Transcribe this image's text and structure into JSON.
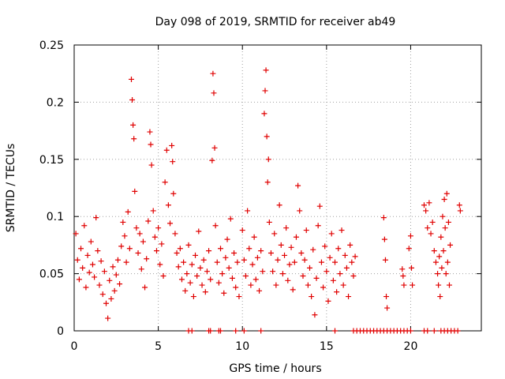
{
  "chart_data": {
    "type": "scatter",
    "title": "Day 098 of 2019, SRMTID for receiver ab49",
    "xlabel": "GPS time / hours",
    "ylabel": "SRMTID / TECUs",
    "xlim": [
      0,
      24.2
    ],
    "ylim": [
      0,
      0.25
    ],
    "x_ticks": [
      0,
      5,
      10,
      15,
      20
    ],
    "x_tick_labels": [
      "0",
      "5",
      "10",
      "15",
      "20"
    ],
    "y_ticks": [
      0,
      0.05,
      0.1,
      0.15,
      0.2,
      0.25
    ],
    "y_tick_labels": [
      "0",
      "0.05",
      "0.1",
      "0.15",
      "0.2",
      "0.25"
    ],
    "grid": true,
    "marker": "+",
    "series": [
      {
        "name": "SRMTID",
        "color": "#e00000",
        "points": [
          [
            0.1,
            0.085
          ],
          [
            0.2,
            0.062
          ],
          [
            0.3,
            0.045
          ],
          [
            0.4,
            0.072
          ],
          [
            0.5,
            0.055
          ],
          [
            0.6,
            0.092
          ],
          [
            0.7,
            0.038
          ],
          [
            0.8,
            0.066
          ],
          [
            0.9,
            0.051
          ],
          [
            1.0,
            0.078
          ],
          [
            1.1,
            0.058
          ],
          [
            1.2,
            0.047
          ],
          [
            1.3,
            0.099
          ],
          [
            1.4,
            0.07
          ],
          [
            1.5,
            0.04
          ],
          [
            1.6,
            0.061
          ],
          [
            1.7,
            0.032
          ],
          [
            1.8,
            0.052
          ],
          [
            1.9,
            0.024
          ],
          [
            2.0,
            0.011
          ],
          [
            2.1,
            0.044
          ],
          [
            2.2,
            0.028
          ],
          [
            2.3,
            0.056
          ],
          [
            2.4,
            0.035
          ],
          [
            2.5,
            0.049
          ],
          [
            2.6,
            0.062
          ],
          [
            2.7,
            0.041
          ],
          [
            2.8,
            0.074
          ],
          [
            2.9,
            0.095
          ],
          [
            3.0,
            0.083
          ],
          [
            3.1,
            0.06
          ],
          [
            3.2,
            0.104
          ],
          [
            3.3,
            0.072
          ],
          [
            3.4,
            0.22
          ],
          [
            3.45,
            0.202
          ],
          [
            3.5,
            0.18
          ],
          [
            3.55,
            0.168
          ],
          [
            3.6,
            0.122
          ],
          [
            3.7,
            0.09
          ],
          [
            3.8,
            0.068
          ],
          [
            3.9,
            0.085
          ],
          [
            4.0,
            0.054
          ],
          [
            4.1,
            0.078
          ],
          [
            4.2,
            0.038
          ],
          [
            4.3,
            0.063
          ],
          [
            4.4,
            0.096
          ],
          [
            4.5,
            0.174
          ],
          [
            4.55,
            0.163
          ],
          [
            4.6,
            0.145
          ],
          [
            4.7,
            0.105
          ],
          [
            4.8,
            0.082
          ],
          [
            4.9,
            0.07
          ],
          [
            5.0,
            0.09
          ],
          [
            5.1,
            0.058
          ],
          [
            5.2,
            0.076
          ],
          [
            5.3,
            0.048
          ],
          [
            5.4,
            0.13
          ],
          [
            5.5,
            0.158
          ],
          [
            5.6,
            0.11
          ],
          [
            5.7,
            0.094
          ],
          [
            5.8,
            0.162
          ],
          [
            5.85,
            0.148
          ],
          [
            5.9,
            0.12
          ],
          [
            6.0,
            0.085
          ],
          [
            6.1,
            0.068
          ],
          [
            6.2,
            0.056
          ],
          [
            6.3,
            0.072
          ],
          [
            6.4,
            0.045
          ],
          [
            6.5,
            0.06
          ],
          [
            6.6,
            0.035
          ],
          [
            6.7,
            0.05
          ],
          [
            6.8,
            0.075
          ],
          [
            6.9,
            0.042
          ],
          [
            7.0,
            0.058
          ],
          [
            7.1,
            0.03
          ],
          [
            7.2,
            0.066
          ],
          [
            7.3,
            0.048
          ],
          [
            7.4,
            0.087
          ],
          [
            7.5,
            0.055
          ],
          [
            7.6,
            0.04
          ],
          [
            7.7,
            0.062
          ],
          [
            7.8,
            0.034
          ],
          [
            7.9,
            0.052
          ],
          [
            8.0,
            0.07
          ],
          [
            8.1,
            0.045
          ],
          [
            8.2,
            0.149
          ],
          [
            8.25,
            0.225
          ],
          [
            8.3,
            0.208
          ],
          [
            8.35,
            0.16
          ],
          [
            8.4,
            0.092
          ],
          [
            8.5,
            0.06
          ],
          [
            8.6,
            0.042
          ],
          [
            8.7,
            0.072
          ],
          [
            8.8,
            0.05
          ],
          [
            8.9,
            0.033
          ],
          [
            9.0,
            0.064
          ],
          [
            9.1,
            0.08
          ],
          [
            9.2,
            0.055
          ],
          [
            9.3,
            0.098
          ],
          [
            9.4,
            0.046
          ],
          [
            9.5,
            0.068
          ],
          [
            9.6,
            0.038
          ],
          [
            9.7,
            0.06
          ],
          [
            9.8,
            0.03
          ],
          [
            10.0,
            0.088
          ],
          [
            10.1,
            0.062
          ],
          [
            10.2,
            0.048
          ],
          [
            10.3,
            0.105
          ],
          [
            10.4,
            0.072
          ],
          [
            10.5,
            0.04
          ],
          [
            10.6,
            0.058
          ],
          [
            10.7,
            0.082
          ],
          [
            10.8,
            0.045
          ],
          [
            10.9,
            0.064
          ],
          [
            11.0,
            0.035
          ],
          [
            11.1,
            0.07
          ],
          [
            11.2,
            0.052
          ],
          [
            11.3,
            0.19
          ],
          [
            11.35,
            0.21
          ],
          [
            11.4,
            0.228
          ],
          [
            11.45,
            0.17
          ],
          [
            11.5,
            0.13
          ],
          [
            11.55,
            0.15
          ],
          [
            11.6,
            0.095
          ],
          [
            11.7,
            0.068
          ],
          [
            11.8,
            0.052
          ],
          [
            11.9,
            0.085
          ],
          [
            12.0,
            0.04
          ],
          [
            12.1,
            0.062
          ],
          [
            12.2,
            0.11
          ],
          [
            12.3,
            0.075
          ],
          [
            12.4,
            0.05
          ],
          [
            12.5,
            0.066
          ],
          [
            12.6,
            0.09
          ],
          [
            12.7,
            0.044
          ],
          [
            12.8,
            0.058
          ],
          [
            12.9,
            0.073
          ],
          [
            13.0,
            0.036
          ],
          [
            13.1,
            0.06
          ],
          [
            13.2,
            0.082
          ],
          [
            13.3,
            0.127
          ],
          [
            13.4,
            0.105
          ],
          [
            13.5,
            0.068
          ],
          [
            13.6,
            0.048
          ],
          [
            13.7,
            0.062
          ],
          [
            13.8,
            0.088
          ],
          [
            13.9,
            0.04
          ],
          [
            14.0,
            0.055
          ],
          [
            14.1,
            0.03
          ],
          [
            14.2,
            0.071
          ],
          [
            14.3,
            0.014
          ],
          [
            14.4,
            0.046
          ],
          [
            14.5,
            0.092
          ],
          [
            14.6,
            0.109
          ],
          [
            14.7,
            0.06
          ],
          [
            14.8,
            0.038
          ],
          [
            14.9,
            0.074
          ],
          [
            15.0,
            0.052
          ],
          [
            15.1,
            0.026
          ],
          [
            15.2,
            0.064
          ],
          [
            15.3,
            0.085
          ],
          [
            15.4,
            0.044
          ],
          [
            15.5,
            0.06
          ],
          [
            15.6,
            0.034
          ],
          [
            15.7,
            0.072
          ],
          [
            15.8,
            0.05
          ],
          [
            15.9,
            0.088
          ],
          [
            16.0,
            0.04
          ],
          [
            16.1,
            0.066
          ],
          [
            16.2,
            0.055
          ],
          [
            16.3,
            0.03
          ],
          [
            16.4,
            0.075
          ],
          [
            16.5,
            0.06
          ],
          [
            16.6,
            0.048
          ],
          [
            16.7,
            0.065
          ],
          [
            18.4,
            0.099
          ],
          [
            18.45,
            0.08
          ],
          [
            18.5,
            0.062
          ],
          [
            18.55,
            0.03
          ],
          [
            18.6,
            0.02
          ],
          [
            19.5,
            0.054
          ],
          [
            19.55,
            0.048
          ],
          [
            19.6,
            0.04
          ],
          [
            19.9,
            0.072
          ],
          [
            20.0,
            0.083
          ],
          [
            20.05,
            0.055
          ],
          [
            20.1,
            0.04
          ],
          [
            20.8,
            0.11
          ],
          [
            20.9,
            0.105
          ],
          [
            21.0,
            0.09
          ],
          [
            21.1,
            0.112
          ],
          [
            21.2,
            0.085
          ],
          [
            21.3,
            0.095
          ],
          [
            21.4,
            0.07
          ],
          [
            21.5,
            0.06
          ],
          [
            21.6,
            0.05
          ],
          [
            21.65,
            0.04
          ],
          [
            21.7,
            0.065
          ],
          [
            21.75,
            0.03
          ],
          [
            21.8,
            0.082
          ],
          [
            21.85,
            0.055
          ],
          [
            21.9,
            0.1
          ],
          [
            21.95,
            0.07
          ],
          [
            22.0,
            0.115
          ],
          [
            22.05,
            0.09
          ],
          [
            22.1,
            0.05
          ],
          [
            22.15,
            0.12
          ],
          [
            22.2,
            0.06
          ],
          [
            22.25,
            0.095
          ],
          [
            22.3,
            0.04
          ],
          [
            22.35,
            0.075
          ],
          [
            22.9,
            0.11
          ],
          [
            22.95,
            0.105
          ],
          [
            6.8,
            0.0
          ],
          [
            7.0,
            0.0
          ],
          [
            8.0,
            0.0
          ],
          [
            8.1,
            0.0
          ],
          [
            8.6,
            0.0
          ],
          [
            8.7,
            0.0
          ],
          [
            9.6,
            0.0
          ],
          [
            10.1,
            0.0
          ],
          [
            11.1,
            0.0
          ],
          [
            15.5,
            0.0
          ],
          [
            16.6,
            0.0
          ],
          [
            16.8,
            0.0
          ],
          [
            17.0,
            0.0
          ],
          [
            17.2,
            0.0
          ],
          [
            17.4,
            0.0
          ],
          [
            17.6,
            0.0
          ],
          [
            17.8,
            0.0
          ],
          [
            18.0,
            0.0
          ],
          [
            18.2,
            0.0
          ],
          [
            18.4,
            0.0
          ],
          [
            18.6,
            0.0
          ],
          [
            18.8,
            0.0
          ],
          [
            19.0,
            0.0
          ],
          [
            19.2,
            0.0
          ],
          [
            19.4,
            0.0
          ],
          [
            19.6,
            0.0
          ],
          [
            19.8,
            0.0
          ],
          [
            20.0,
            0.0
          ],
          [
            20.8,
            0.0
          ],
          [
            21.0,
            0.0
          ],
          [
            21.4,
            0.0
          ],
          [
            21.8,
            0.0
          ],
          [
            22.0,
            0.0
          ],
          [
            22.2,
            0.0
          ],
          [
            22.4,
            0.0
          ],
          [
            22.6,
            0.0
          ],
          [
            22.8,
            0.0
          ]
        ]
      }
    ]
  }
}
